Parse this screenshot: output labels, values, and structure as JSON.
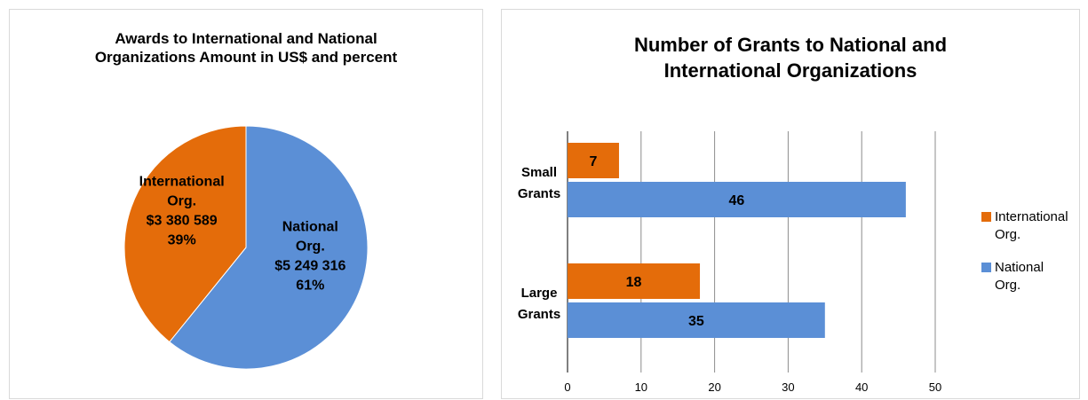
{
  "chart_data": [
    {
      "type": "pie",
      "title": "Awards to International and National\nOrganizations  Amount in US$ and percent",
      "slices": [
        {
          "name": "National\nOrg.",
          "amount_label": "$5 249 316",
          "percent_label": "61%",
          "value": 5249316,
          "percent": 61,
          "color": "#5B8FD6"
        },
        {
          "name": "International\nOrg.",
          "amount_label": "$3 380 589",
          "percent_label": "39%",
          "value": 3380589,
          "percent": 39,
          "color": "#E46C0A"
        }
      ]
    },
    {
      "type": "bar",
      "orientation": "horizontal",
      "title": "Number of Grants to National and\nInternational Organizations",
      "categories": [
        "Small\nGrants",
        "Large\nGrants"
      ],
      "series": [
        {
          "name": "International\nOrg.",
          "values": [
            7,
            18
          ],
          "color": "#E46C0A"
        },
        {
          "name": "National\nOrg.",
          "values": [
            46,
            35
          ],
          "color": "#5B8FD6"
        }
      ],
      "xlim": [
        0,
        50
      ],
      "xticks": [
        "0",
        "10",
        "20",
        "30",
        "40",
        "50"
      ],
      "grid": true,
      "legend_position": "right"
    }
  ]
}
